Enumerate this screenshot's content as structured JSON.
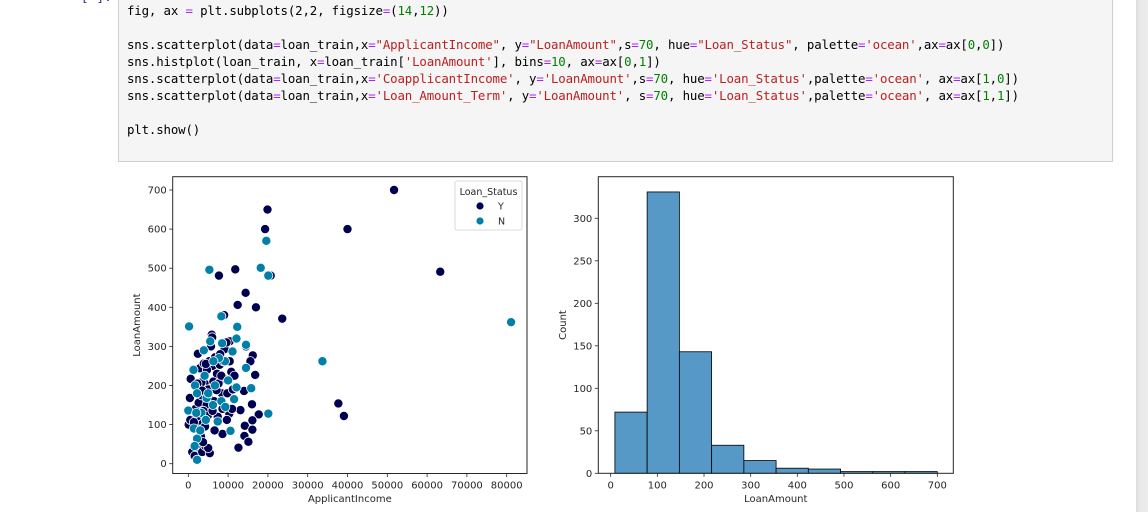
{
  "notebook": {
    "prompt": "[ ]:",
    "code_lines": [
      [
        {
          "t": "fig, ax "
        },
        {
          "t": "=",
          "c": "op"
        },
        {
          "t": " plt.subplots(2,2, figsize"
        },
        {
          "t": "=",
          "c": "op"
        },
        {
          "t": "("
        },
        {
          "t": "14",
          "c": "num"
        },
        {
          "t": ","
        },
        {
          "t": "12",
          "c": "num"
        },
        {
          "t": "))"
        }
      ],
      [],
      [
        {
          "t": "sns.scatterplot(data"
        },
        {
          "t": "=",
          "c": "op"
        },
        {
          "t": "loan_train,x"
        },
        {
          "t": "=",
          "c": "op"
        },
        {
          "t": "\"ApplicantIncome\"",
          "c": "str"
        },
        {
          "t": ", y"
        },
        {
          "t": "=",
          "c": "op"
        },
        {
          "t": "\"LoanAmount\"",
          "c": "str"
        },
        {
          "t": ",s"
        },
        {
          "t": "=",
          "c": "op"
        },
        {
          "t": "70",
          "c": "num"
        },
        {
          "t": ", hue"
        },
        {
          "t": "=",
          "c": "op"
        },
        {
          "t": "\"Loan_Status\"",
          "c": "str"
        },
        {
          "t": ", palette"
        },
        {
          "t": "=",
          "c": "op"
        },
        {
          "t": "'ocean'",
          "c": "str"
        },
        {
          "t": ",ax"
        },
        {
          "t": "=",
          "c": "op"
        },
        {
          "t": "ax["
        },
        {
          "t": "0",
          "c": "num"
        },
        {
          "t": ","
        },
        {
          "t": "0",
          "c": "num"
        },
        {
          "t": "])"
        }
      ],
      [
        {
          "t": "sns.histplot(loan_train, x"
        },
        {
          "t": "=",
          "c": "op"
        },
        {
          "t": "loan_train["
        },
        {
          "t": "'LoanAmount'",
          "c": "str"
        },
        {
          "t": "], bins"
        },
        {
          "t": "=",
          "c": "op"
        },
        {
          "t": "10",
          "c": "num"
        },
        {
          "t": ", ax"
        },
        {
          "t": "=",
          "c": "op"
        },
        {
          "t": "ax["
        },
        {
          "t": "0",
          "c": "num"
        },
        {
          "t": ","
        },
        {
          "t": "1",
          "c": "num"
        },
        {
          "t": "])"
        }
      ],
      [
        {
          "t": "sns.scatterplot(data"
        },
        {
          "t": "=",
          "c": "op"
        },
        {
          "t": "loan_train,x"
        },
        {
          "t": "=",
          "c": "op"
        },
        {
          "t": "'CoapplicantIncome'",
          "c": "str"
        },
        {
          "t": ", y"
        },
        {
          "t": "=",
          "c": "op"
        },
        {
          "t": "'LoanAmount'",
          "c": "str"
        },
        {
          "t": ",s"
        },
        {
          "t": "=",
          "c": "op"
        },
        {
          "t": "70",
          "c": "num"
        },
        {
          "t": ", hue"
        },
        {
          "t": "=",
          "c": "op"
        },
        {
          "t": "'Loan_Status'",
          "c": "str"
        },
        {
          "t": ",palette"
        },
        {
          "t": "=",
          "c": "op"
        },
        {
          "t": "'ocean'",
          "c": "str"
        },
        {
          "t": ", ax"
        },
        {
          "t": "=",
          "c": "op"
        },
        {
          "t": "ax["
        },
        {
          "t": "1",
          "c": "num"
        },
        {
          "t": ","
        },
        {
          "t": "0",
          "c": "num"
        },
        {
          "t": "])"
        }
      ],
      [
        {
          "t": "sns.scatterplot(data"
        },
        {
          "t": "=",
          "c": "op"
        },
        {
          "t": "loan_train,x"
        },
        {
          "t": "=",
          "c": "op"
        },
        {
          "t": "'Loan_Amount_Term'",
          "c": "str"
        },
        {
          "t": ", y"
        },
        {
          "t": "=",
          "c": "op"
        },
        {
          "t": "'LoanAmount'",
          "c": "str"
        },
        {
          "t": ", s"
        },
        {
          "t": "=",
          "c": "op"
        },
        {
          "t": "70",
          "c": "num"
        },
        {
          "t": ", hue"
        },
        {
          "t": "=",
          "c": "op"
        },
        {
          "t": "'Loan_Status'",
          "c": "str"
        },
        {
          "t": ",palette"
        },
        {
          "t": "=",
          "c": "op"
        },
        {
          "t": "'ocean'",
          "c": "str"
        },
        {
          "t": ", ax"
        },
        {
          "t": "=",
          "c": "op"
        },
        {
          "t": "ax["
        },
        {
          "t": "1",
          "c": "num"
        },
        {
          "t": ","
        },
        {
          "t": "1",
          "c": "num"
        },
        {
          "t": "])"
        }
      ],
      [],
      [
        {
          "t": "plt.show()"
        }
      ]
    ]
  },
  "colors": {
    "Y": "#000050",
    "N": "#0080a8",
    "hist_fill": "#5698c6",
    "hist_edge": "#000000",
    "axis": "#262626"
  },
  "chart_data": [
    {
      "type": "scatter",
      "title": "",
      "xlabel": "ApplicantIncome",
      "ylabel": "LoanAmount",
      "xlim": [
        -4000,
        85000
      ],
      "ylim": [
        -25,
        730
      ],
      "xticks": [
        0,
        10000,
        20000,
        30000,
        40000,
        50000,
        60000,
        70000,
        80000
      ],
      "yticks": [
        0,
        100,
        200,
        300,
        400,
        500,
        600,
        700
      ],
      "grid": false,
      "legend": {
        "title": "Loan_Status",
        "position": "upper right",
        "entries": [
          "Y",
          "N"
        ]
      },
      "series": [
        {
          "name": "Y",
          "points": [
            [
              51700,
              700
            ],
            [
              40000,
              600
            ],
            [
              63300,
              491
            ],
            [
              37700,
              154
            ],
            [
              39100,
              122
            ],
            [
              19900,
              650
            ],
            [
              19300,
              600
            ],
            [
              11800,
              497
            ],
            [
              7700,
              481
            ],
            [
              20700,
              481
            ],
            [
              14400,
              437
            ],
            [
              12400,
              406
            ],
            [
              17000,
              400
            ],
            [
              23600,
              371
            ],
            [
              9000,
              380
            ],
            [
              14500,
              300
            ],
            [
              10400,
              313
            ],
            [
              16200,
              277
            ],
            [
              15600,
              262
            ],
            [
              16800,
              227
            ],
            [
              14000,
              186
            ],
            [
              16000,
              152
            ],
            [
              17700,
              126
            ],
            [
              16100,
              111
            ],
            [
              14200,
              97
            ],
            [
              16100,
              87
            ],
            [
              14100,
              71
            ],
            [
              15100,
              56
            ],
            [
              12600,
              41
            ],
            [
              8600,
              76
            ],
            [
              10800,
              137
            ],
            [
              13100,
              137
            ],
            [
              5900,
              330
            ],
            [
              6000,
              323
            ],
            [
              2400,
              281
            ],
            [
              5700,
              300
            ],
            [
              600,
              217
            ],
            [
              100,
              100
            ],
            [
              400,
              168
            ],
            [
              500,
              112
            ],
            [
              1000,
              30
            ],
            [
              1600,
              20
            ],
            [
              2800,
              40
            ],
            [
              3500,
              30
            ],
            [
              5400,
              27
            ],
            [
              2200,
              60
            ],
            [
              3200,
              70
            ],
            [
              4300,
              45
            ],
            [
              5000,
              40
            ],
            [
              2600,
              100
            ],
            [
              3000,
              110
            ],
            [
              4200,
              95
            ],
            [
              6600,
              85
            ],
            [
              1800,
              140
            ],
            [
              2600,
              156
            ],
            [
              3300,
              175
            ],
            [
              4100,
              205
            ],
            [
              5000,
              190
            ],
            [
              6100,
              250
            ],
            [
              7200,
              230
            ],
            [
              7900,
              253
            ],
            [
              8800,
              262
            ],
            [
              9100,
              293
            ],
            [
              10400,
              262
            ],
            [
              10800,
              235
            ],
            [
              9500,
              215
            ],
            [
              8400,
              180
            ],
            [
              9800,
              180
            ],
            [
              11200,
              190
            ],
            [
              10300,
              128
            ],
            [
              9700,
              112
            ],
            [
              8600,
              140
            ],
            [
              7100,
              188
            ],
            [
              6300,
              210
            ],
            [
              5500,
              165
            ],
            [
              4600,
              150
            ],
            [
              3800,
              135
            ],
            [
              3300,
              208
            ],
            [
              2900,
              244
            ],
            [
              3900,
              256
            ],
            [
              4700,
              240
            ],
            [
              5300,
              262
            ],
            [
              6700,
              272
            ],
            [
              8000,
              280
            ],
            [
              9600,
              310
            ],
            [
              11600,
              225
            ],
            [
              11000,
              140
            ],
            [
              7400,
              120
            ],
            [
              6500,
              160
            ],
            [
              4900,
              123
            ],
            [
              2100,
              120
            ],
            [
              1400,
              106
            ],
            [
              2300,
              205
            ],
            [
              3500,
              187
            ],
            [
              4400,
              255
            ],
            [
              7600,
              205
            ],
            [
              8300,
              225
            ],
            [
              6100,
              135
            ],
            [
              2900,
              85
            ],
            [
              3700,
              55
            ]
          ]
        },
        {
          "name": "N",
          "points": [
            [
              81100,
              362
            ],
            [
              33700,
              262
            ],
            [
              19600,
              570
            ],
            [
              5300,
              496
            ],
            [
              18200,
              501
            ],
            [
              20100,
              481
            ],
            [
              8300,
              377
            ],
            [
              200,
              351
            ],
            [
              12300,
              350
            ],
            [
              12100,
              320
            ],
            [
              14500,
              304
            ],
            [
              14500,
              245
            ],
            [
              15800,
              193
            ],
            [
              11500,
              165
            ],
            [
              20100,
              128
            ],
            [
              10600,
              84
            ],
            [
              0,
              136
            ],
            [
              1300,
              240
            ],
            [
              3900,
              290
            ],
            [
              5500,
              313
            ],
            [
              8500,
              308
            ],
            [
              9200,
              262
            ],
            [
              7700,
              270
            ],
            [
              6300,
              262
            ],
            [
              4100,
              225
            ],
            [
              1700,
              200
            ],
            [
              2200,
              180
            ],
            [
              4600,
              168
            ],
            [
              6700,
              200
            ],
            [
              8300,
              160
            ],
            [
              10000,
              213
            ],
            [
              11100,
              287
            ],
            [
              6200,
              150
            ],
            [
              3300,
              130
            ],
            [
              2000,
              130
            ],
            [
              4400,
              112
            ],
            [
              7400,
              108
            ],
            [
              1400,
              90
            ],
            [
              2200,
              64
            ],
            [
              1600,
              45
            ],
            [
              2200,
              10
            ],
            [
              3000,
              85
            ],
            [
              5000,
              180
            ],
            [
              9300,
              145
            ],
            [
              12100,
              195
            ]
          ]
        }
      ]
    },
    {
      "type": "bar",
      "subtype": "histogram",
      "title": "",
      "xlabel": "LoanAmount",
      "ylabel": "Count",
      "bins": 10,
      "bin_edges": [
        9,
        78.1,
        147.2,
        216.3,
        285.4,
        354.5,
        423.6,
        492.7,
        561.8,
        630.9,
        700
      ],
      "categories": [
        "9-78",
        "78-147",
        "147-216",
        "216-285",
        "285-355",
        "355-424",
        "424-493",
        "493-562",
        "562-631",
        "631-700"
      ],
      "values": [
        72,
        331,
        143,
        33,
        15,
        6,
        5,
        2,
        2,
        2
      ],
      "xlim": [
        -25,
        734
      ],
      "ylim": [
        0,
        348
      ],
      "xticks": [
        0,
        100,
        200,
        300,
        400,
        500,
        600,
        700
      ],
      "yticks": [
        0,
        50,
        100,
        150,
        200,
        250,
        300
      ],
      "grid": false
    }
  ]
}
